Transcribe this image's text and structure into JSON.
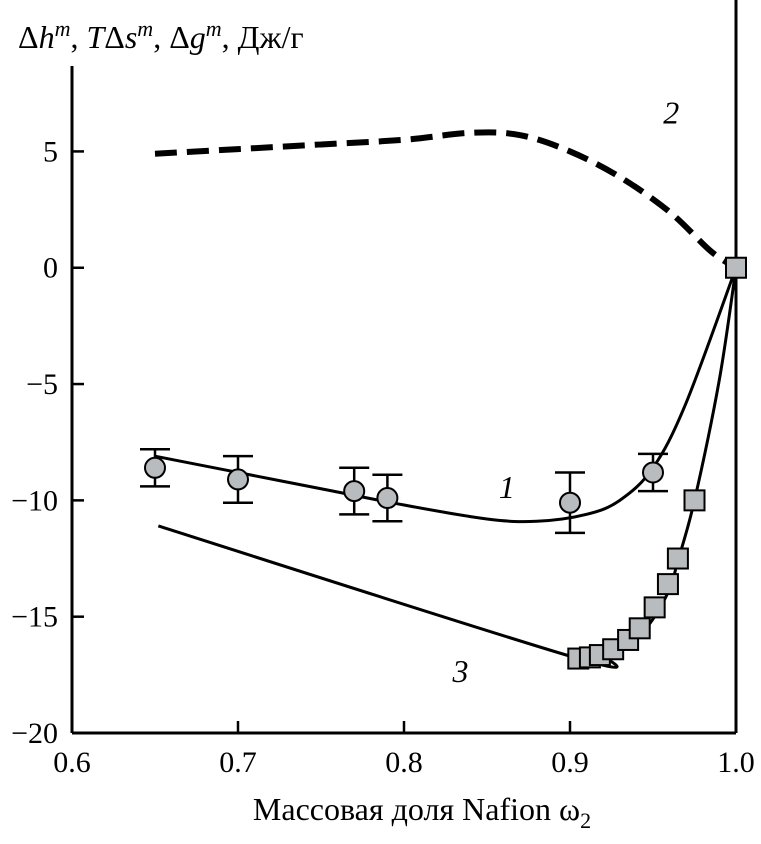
{
  "chart_data": {
    "type": "line",
    "ylabel": "Δh^m, TΔs^m, Δg^m, Дж/г",
    "ylabel_parts": {
      "dh_delta": "Δ",
      "dh_var": "h",
      "dh_sup": "m",
      "sep1": ", ",
      "ts_t": "T",
      "ts_delta": "Δ",
      "ts_var": "s",
      "ts_sup": "m",
      "sep2": ", ",
      "dg_delta": "Δ",
      "dg_var": "g",
      "dg_sup": "m",
      "unit": ", Дж/г"
    },
    "xlabel": "Массовая доля Nafion ω2",
    "xlabel_parts": {
      "text": "Массовая доля Nafion ω",
      "sub": "2"
    },
    "xlim": [
      0.6,
      1.0
    ],
    "ylim": [
      -20,
      8.5
    ],
    "x_ticks": [
      "0.6",
      "0.7",
      "0.8",
      "0.9",
      "1.0"
    ],
    "y_ticks": [
      "5",
      "0",
      "−5",
      "−10",
      "−15",
      "−20"
    ],
    "x_tick_values": [
      0.6,
      0.7,
      0.8,
      0.9,
      1.0
    ],
    "y_tick_values": [
      5,
      0,
      -5,
      -10,
      -15,
      -20
    ],
    "series": [
      {
        "name": "1",
        "style": "solid",
        "line": [
          [
            0.65,
            -8.1
          ],
          [
            0.7,
            -8.8
          ],
          [
            0.75,
            -9.5
          ],
          [
            0.8,
            -10.2
          ],
          [
            0.85,
            -10.8
          ],
          [
            0.88,
            -10.9
          ],
          [
            0.91,
            -10.6
          ],
          [
            0.93,
            -10.0
          ],
          [
            0.95,
            -8.6
          ],
          [
            0.97,
            -5.8
          ],
          [
            1.0,
            0.0
          ]
        ],
        "markers": "circle",
        "points": [
          {
            "x": 0.65,
            "y": -8.6,
            "err": 0.8
          },
          {
            "x": 0.7,
            "y": -9.1,
            "err": 1.0
          },
          {
            "x": 0.77,
            "y": -9.6,
            "err": 1.0
          },
          {
            "x": 0.79,
            "y": -9.9,
            "err": 1.0
          },
          {
            "x": 0.9,
            "y": -10.1,
            "err": 1.3
          },
          {
            "x": 0.95,
            "y": -8.8,
            "err": 0.8
          }
        ]
      },
      {
        "name": "2",
        "style": "dashed",
        "line": [
          [
            0.65,
            4.9
          ],
          [
            0.7,
            5.1
          ],
          [
            0.75,
            5.3
          ],
          [
            0.8,
            5.5
          ],
          [
            0.84,
            5.8
          ],
          [
            0.87,
            5.7
          ],
          [
            0.9,
            5.0
          ],
          [
            0.93,
            3.9
          ],
          [
            0.96,
            2.4
          ],
          [
            0.985,
            0.7
          ],
          [
            1.0,
            0.0
          ]
        ]
      },
      {
        "name": "3",
        "style": "solid",
        "line": [
          [
            0.652,
            -11.1
          ],
          [
            0.905,
            -16.8
          ],
          [
            0.92,
            -16.6
          ],
          [
            0.93,
            -16.3
          ],
          [
            0.94,
            -15.9
          ],
          [
            0.95,
            -15.1
          ],
          [
            0.96,
            -13.8
          ],
          [
            0.965,
            -12.6
          ],
          [
            0.975,
            -10.0
          ],
          [
            0.99,
            -4.8
          ],
          [
            1.0,
            0.0
          ]
        ],
        "markers": "square",
        "points": [
          {
            "x": 0.905,
            "y": -16.8
          },
          {
            "x": 0.912,
            "y": -16.75
          },
          {
            "x": 0.918,
            "y": -16.65
          },
          {
            "x": 0.926,
            "y": -16.4
          },
          {
            "x": 0.935,
            "y": -16.0
          },
          {
            "x": 0.942,
            "y": -15.5
          },
          {
            "x": 0.951,
            "y": -14.6
          },
          {
            "x": 0.959,
            "y": -13.6
          },
          {
            "x": 0.965,
            "y": -12.5
          },
          {
            "x": 0.975,
            "y": -10.0
          },
          {
            "x": 1.0,
            "y": 0.0
          }
        ]
      }
    ],
    "curve_labels": [
      {
        "text": "1",
        "x": 0.862,
        "y": -9.9
      },
      {
        "text": "2",
        "x": 0.961,
        "y": 6.2
      },
      {
        "text": "3",
        "x": 0.834,
        "y": -17.8
      }
    ],
    "colors": {
      "marker_fill": "#b9bcbe",
      "line": "#000000"
    },
    "grid": false
  }
}
